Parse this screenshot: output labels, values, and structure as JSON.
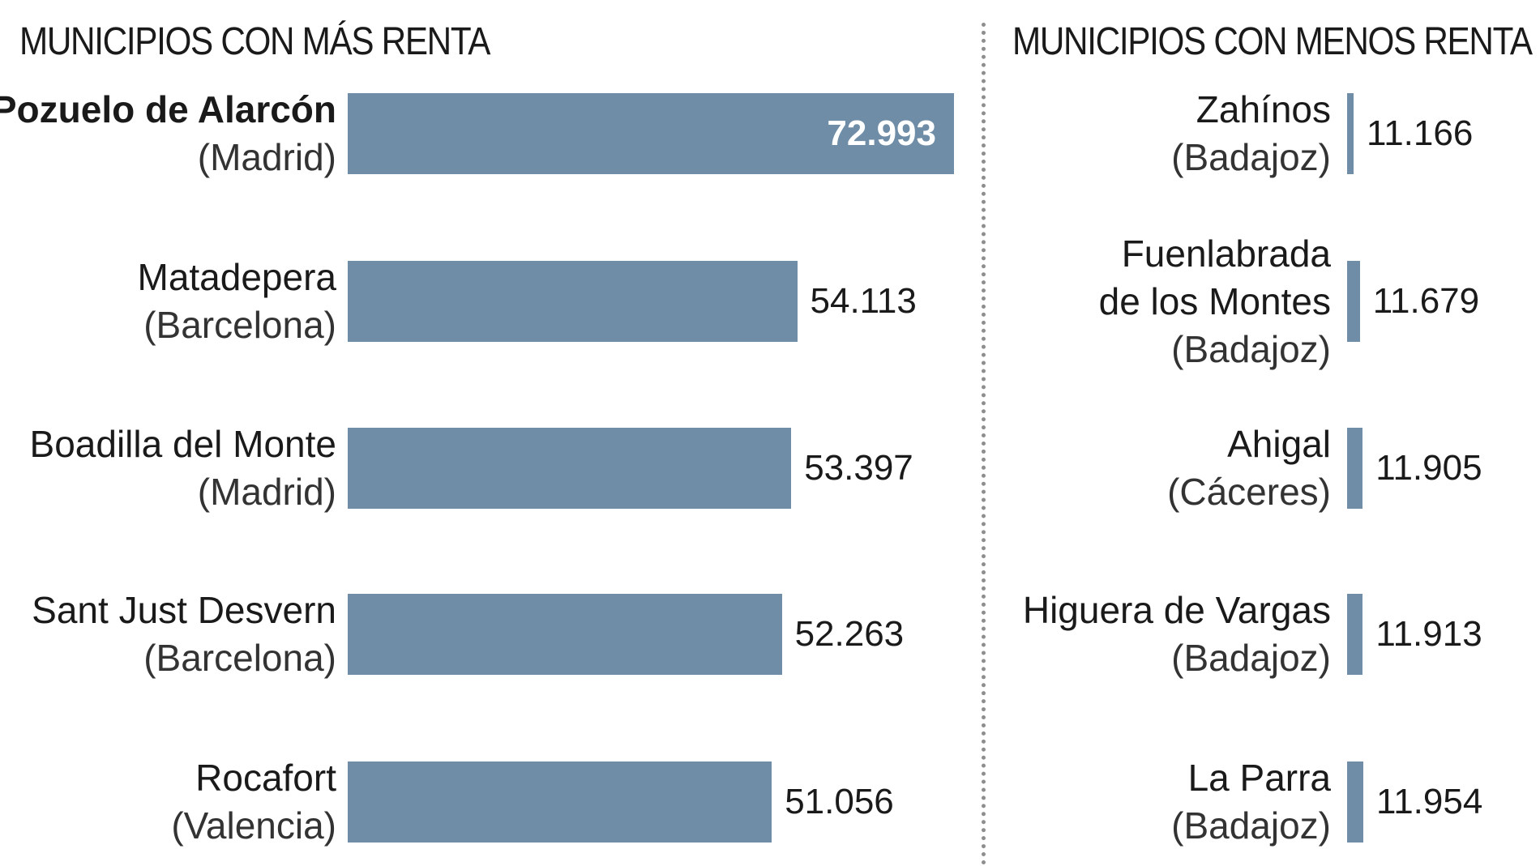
{
  "chart_data": [
    {
      "type": "bar",
      "orientation": "horizontal",
      "title": "MUNICIPIOS CON MÁS RENTA",
      "categories": [
        {
          "name": "Pozuelo de Alarcón",
          "province": "(Madrid)"
        },
        {
          "name": "Matadepera",
          "province": "(Barcelona)"
        },
        {
          "name": "Boadilla del Monte",
          "province": "(Madrid)"
        },
        {
          "name": "Sant Just Desvern",
          "province": "(Barcelona)"
        },
        {
          "name": "Rocafort",
          "province": "(Valencia)"
        }
      ],
      "values": [
        72993,
        54113,
        53397,
        52263,
        51056
      ],
      "value_labels": [
        "72.993",
        "54.113",
        "53.397",
        "52.263",
        "51.056"
      ],
      "highlight_first": true,
      "bar_color": "#6f8da6",
      "grid": false
    },
    {
      "type": "bar",
      "orientation": "horizontal",
      "title": "MUNICIPIOS CON MENOS RENTA",
      "categories": [
        {
          "lines": [
            "Zahínos",
            "(Badajoz)"
          ]
        },
        {
          "lines": [
            "Fuenlabrada",
            "de los Montes",
            "(Badajoz)"
          ]
        },
        {
          "lines": [
            "Ahigal",
            "(Cáceres)"
          ]
        },
        {
          "lines": [
            "Higuera de Vargas",
            "(Badajoz)"
          ]
        },
        {
          "lines": [
            "La Parra",
            "(Badajoz)"
          ]
        }
      ],
      "values": [
        11166,
        11679,
        11905,
        11913,
        11954
      ],
      "value_labels": [
        "11.166",
        "11.679",
        "11.905",
        "11.913",
        "11.954"
      ],
      "bar_color": "#6f8da6",
      "grid": false
    }
  ]
}
